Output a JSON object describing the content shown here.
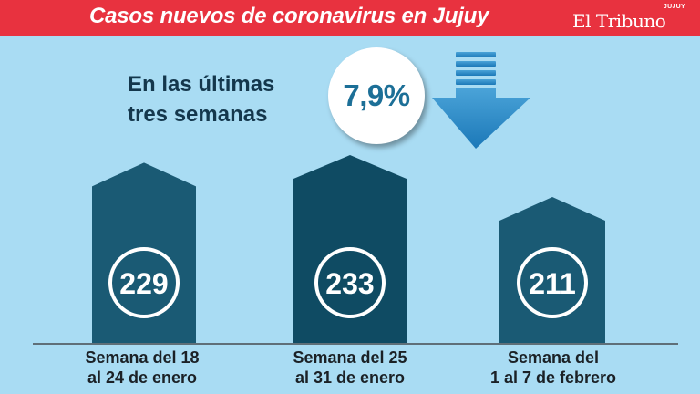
{
  "header": {
    "title": "Casos nuevos de coronavirus en Jujuy",
    "logo": "El Tribuno",
    "logo_region": "JUJUY"
  },
  "summary": {
    "text": "En las últimas tres semanas",
    "change": "7,9%",
    "direction_icon": "arrow-down-icon"
  },
  "colors": {
    "header_red": "#e8323f",
    "background": "#a9dcf3",
    "bar_dark": "#0f4b63",
    "bar_medium": "#1a5a74",
    "accent_blue": "#1c6f97"
  },
  "chart_data": {
    "type": "bar",
    "title": "Casos nuevos de coronavirus en Jujuy",
    "categories": [
      "Semana del 18\nal 24 de enero",
      "Semana del 25\nal 31 de enero",
      "Semana del\n1 al 7 de febrero"
    ],
    "values": [
      229,
      233,
      211
    ],
    "data_labels": [
      "229",
      "233",
      "211"
    ],
    "xlabel": "",
    "ylabel": "",
    "grid": false,
    "legend": "none"
  }
}
